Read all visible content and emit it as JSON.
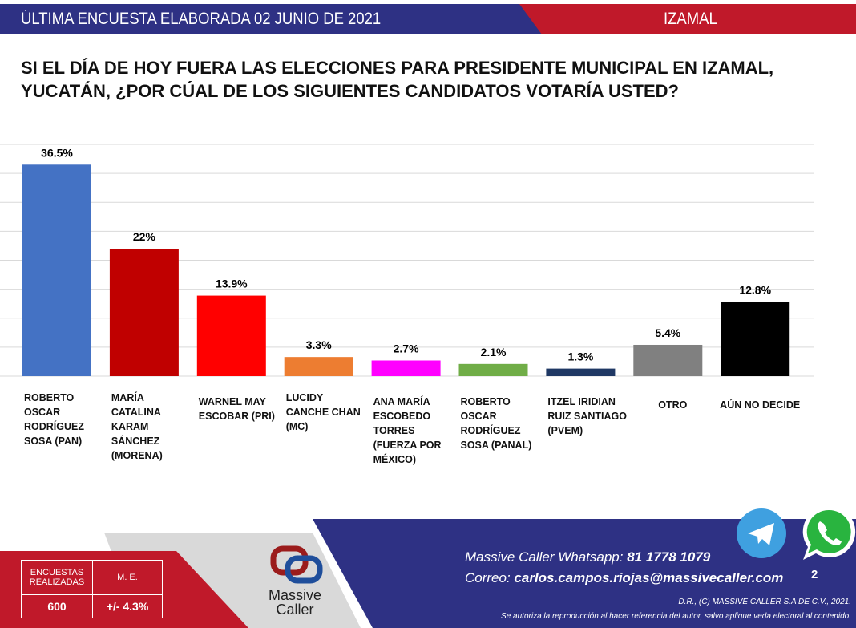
{
  "header": {
    "date_text": "ÚLTIMA ENCUESTA ELABORADA 02 JUNIO DE 2021",
    "place": "IZAMAL"
  },
  "question": "SI EL DÍA DE HOY FUERA LAS ELECCIONES PARA PRESIDENTE MUNICIPAL EN IZAMAL, YUCATÁN, ¿POR CÚAL DE LOS SIGUIENTES CANDIDATOS VOTARÍA USTED?",
  "chart_data": {
    "type": "bar",
    "title": "",
    "categories": [
      "ROBERTO OSCAR RODRÍGUEZ SOSA (PAN)",
      "MARÍA CATALINA KARAM SÁNCHEZ (MORENA)",
      "WARNEL MAY ESCOBAR (PRI)",
      "LUCIDY CANCHE CHAN (MC)",
      "ANA MARÍA ESCOBEDO TORRES (FUERZA POR MÉXICO)",
      "ROBERTO OSCAR RODRÍGUEZ SOSA (PANAL)",
      "ITZEL IRIDIAN RUIZ SANTIAGO (PVEM)",
      "OTRO",
      "AÚN NO DECIDE"
    ],
    "values": [
      36.5,
      22,
      13.9,
      3.3,
      2.7,
      2.1,
      1.3,
      5.4,
      12.8
    ],
    "data_labels": [
      "36.5%",
      "22%",
      "13.9%",
      "3.3%",
      "2.7%",
      "2.1%",
      "1.3%",
      "5.4%",
      "12.8%"
    ],
    "colors": [
      "#4472c4",
      "#c00000",
      "#ff0000",
      "#ed7d31",
      "#ff00ff",
      "#70ad47",
      "#1f3864",
      "#808080",
      "#000000"
    ],
    "ylim": [
      0,
      40
    ],
    "grid": true,
    "legend": "none",
    "y_axis_labels": false
  },
  "footer": {
    "stats": {
      "surveys_label": "ENCUESTAS REALIZADAS",
      "surveys_value": "600",
      "me_label": "M. E.",
      "me_value": "+/- 4.3%"
    },
    "logo": {
      "line1": "Massive",
      "line2": "Caller"
    },
    "whatsapp_label": "Massive Caller Whatsapp:",
    "whatsapp_number": "81 1778 1079",
    "email_label": "Correo:",
    "email": "carlos.campos.riojas@massivecaller.com",
    "page_number": "2",
    "copyright": "D.R., (C) MASSIVE CALLER S.A DE C.V., 2021.",
    "disclaimer": "Se autoriza la reproducción al hacer referencia del autor, salvo aplique veda electoral al contenido."
  }
}
